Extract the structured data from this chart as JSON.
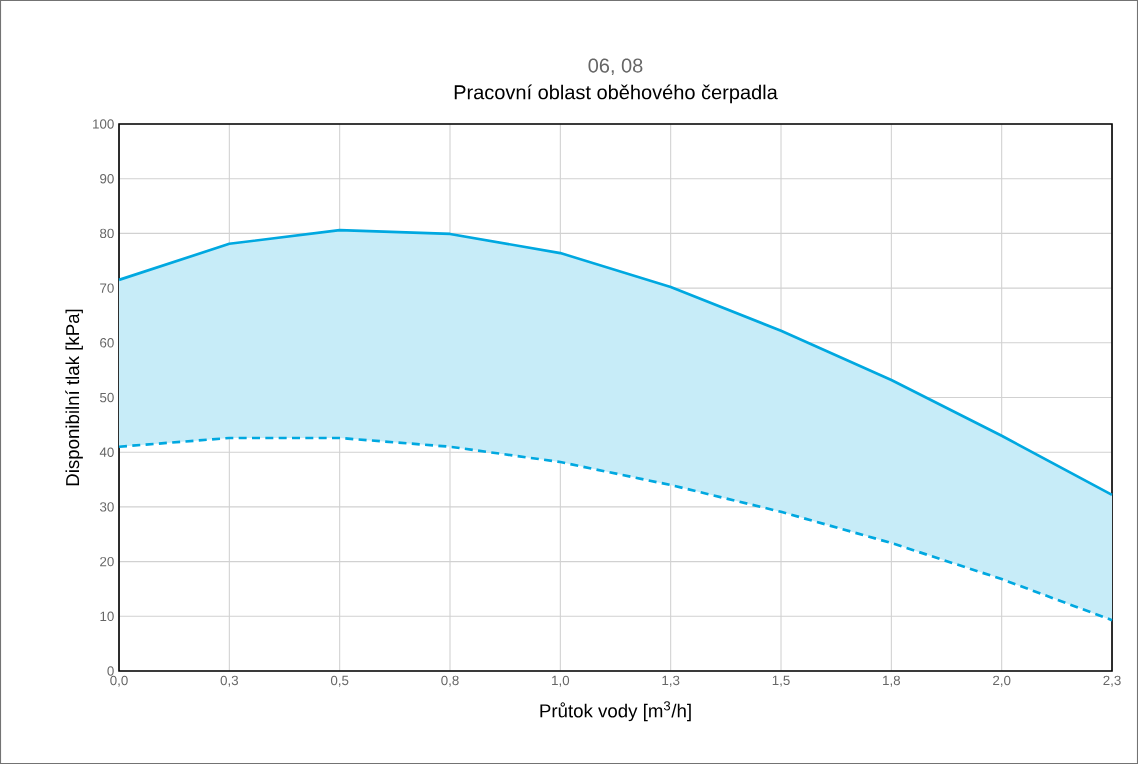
{
  "chart_data": {
    "type": "line",
    "title": "06, 08",
    "subtitle": "Pracovní oblast oběhového čerpadla",
    "xlabel": "Průtok vody [m$^{3}$/h]",
    "ylabel": "Disponibilní tlak [kPa]",
    "categories": [
      "0,0",
      "0,3",
      "0,5",
      "0,8",
      "1,0",
      "1,3",
      "1,5",
      "1,8",
      "2,0",
      "2,3"
    ],
    "series": [
      {
        "color": "#00a8e0",
        "line_style": "solid",
        "values": [
          71.5,
          78.1,
          80.6,
          79.9,
          76.4,
          70.2,
          62.2,
          53.2,
          43.0,
          32.2
        ],
        "lower": [
          41.0,
          42.6,
          42.6,
          41.0,
          38.2,
          34.0,
          29.1,
          23.4,
          16.8,
          9.3
        ],
        "upper": [
          71.5,
          78.1,
          80.6,
          79.9,
          76.4,
          70.2,
          62.2,
          53.2,
          43.0,
          32.2
        ]
      },
      {
        "color": "#00a8e0",
        "line_style": "dashed",
        "values": [
          41.0,
          42.6,
          42.6,
          41.0,
          38.2,
          34.0,
          29.1,
          23.4,
          16.8,
          9.3
        ]
      }
    ],
    "ylim": [
      0,
      100
    ],
    "yticks": [
      0,
      10,
      20,
      30,
      40,
      50,
      60,
      70,
      80,
      90,
      100
    ],
    "grid": true,
    "marker": "none"
  }
}
